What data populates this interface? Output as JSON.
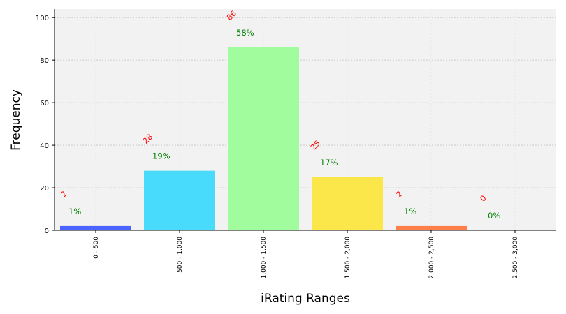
{
  "chart_data": {
    "type": "bar",
    "title": "",
    "xlabel": "iRating Ranges",
    "ylabel": "Frequency",
    "categories": [
      "0 - 500",
      "500 - 1,000",
      "1,000 - 1,500",
      "1,500 - 2,000",
      "2,000 - 2,500",
      "2,500 - 3,000"
    ],
    "values": [
      2,
      28,
      86,
      25,
      2,
      0
    ],
    "count_labels": [
      "2",
      "28",
      "86",
      "25",
      "2",
      "0"
    ],
    "percent_labels": [
      "1%",
      "19%",
      "58%",
      "17%",
      "1%",
      "0%"
    ],
    "bar_colors": [
      "#4c64ff",
      "#48dbfb",
      "#a0fc9c",
      "#fbe74a",
      "#ff7f4a",
      "#ff7f4a"
    ],
    "count_label_color": "#ff0000",
    "percent_label_color": "#008000",
    "plot_background": "#f2f2f2",
    "ylim": [
      0,
      104
    ],
    "yticks": [
      0,
      20,
      40,
      60,
      80,
      100
    ],
    "grid": true
  }
}
